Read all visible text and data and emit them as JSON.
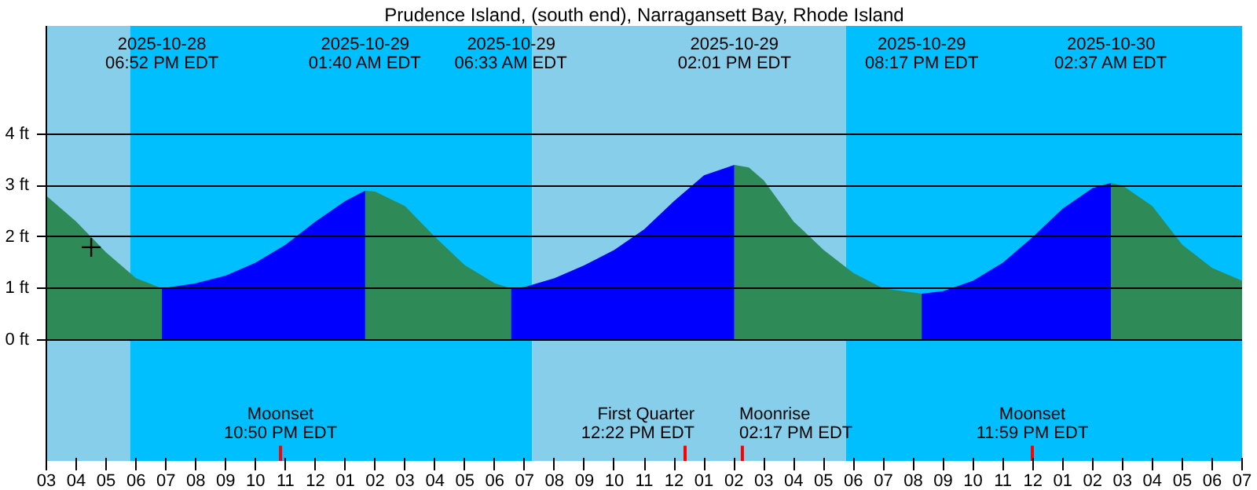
{
  "chart_data": {
    "type": "area",
    "title": "Prudence Island, (south end), Narragansett Bay, Rhode Island",
    "xlim": [
      "2025-10-28T15:00",
      "2025-10-30T07:00"
    ],
    "ylim": [
      -2.35,
      6.1
    ],
    "xticks": [
      {
        "value": "2025-10-28T15:00",
        "label": "03"
      },
      {
        "value": "2025-10-28T16:00",
        "label": "04"
      },
      {
        "value": "2025-10-28T17:00",
        "label": "05"
      },
      {
        "value": "2025-10-28T18:00",
        "label": "06"
      },
      {
        "value": "2025-10-28T19:00",
        "label": "07"
      },
      {
        "value": "2025-10-28T20:00",
        "label": "08"
      },
      {
        "value": "2025-10-28T21:00",
        "label": "09"
      },
      {
        "value": "2025-10-28T22:00",
        "label": "10"
      },
      {
        "value": "2025-10-28T23:00",
        "label": "11"
      },
      {
        "value": "2025-10-29T00:00",
        "label": "12"
      },
      {
        "value": "2025-10-29T01:00",
        "label": "01"
      },
      {
        "value": "2025-10-29T02:00",
        "label": "02"
      },
      {
        "value": "2025-10-29T03:00",
        "label": "03"
      },
      {
        "value": "2025-10-29T04:00",
        "label": "04"
      },
      {
        "value": "2025-10-29T05:00",
        "label": "05"
      },
      {
        "value": "2025-10-29T06:00",
        "label": "06"
      },
      {
        "value": "2025-10-29T07:00",
        "label": "07"
      },
      {
        "value": "2025-10-29T08:00",
        "label": "08"
      },
      {
        "value": "2025-10-29T09:00",
        "label": "09"
      },
      {
        "value": "2025-10-29T10:00",
        "label": "10"
      },
      {
        "value": "2025-10-29T11:00",
        "label": "11"
      },
      {
        "value": "2025-10-29T12:00",
        "label": "12"
      },
      {
        "value": "2025-10-29T13:00",
        "label": "01"
      },
      {
        "value": "2025-10-29T14:00",
        "label": "02"
      },
      {
        "value": "2025-10-29T15:00",
        "label": "03"
      },
      {
        "value": "2025-10-29T16:00",
        "label": "04"
      },
      {
        "value": "2025-10-29T17:00",
        "label": "05"
      },
      {
        "value": "2025-10-29T18:00",
        "label": "06"
      },
      {
        "value": "2025-10-29T19:00",
        "label": "07"
      },
      {
        "value": "2025-10-29T20:00",
        "label": "08"
      },
      {
        "value": "2025-10-29T21:00",
        "label": "09"
      },
      {
        "value": "2025-10-29T22:00",
        "label": "10"
      },
      {
        "value": "2025-10-29T23:00",
        "label": "11"
      },
      {
        "value": "2025-10-30T00:00",
        "label": "12"
      },
      {
        "value": "2025-10-30T01:00",
        "label": "01"
      },
      {
        "value": "2025-10-30T02:00",
        "label": "02"
      },
      {
        "value": "2025-10-30T03:00",
        "label": "03"
      },
      {
        "value": "2025-10-30T04:00",
        "label": "04"
      },
      {
        "value": "2025-10-30T05:00",
        "label": "05"
      },
      {
        "value": "2025-10-30T06:00",
        "label": "06"
      },
      {
        "value": "2025-10-30T07:00",
        "label": "07"
      }
    ],
    "yticks": [
      {
        "value": 0,
        "label": "0 ft"
      },
      {
        "value": 1,
        "label": "1 ft"
      },
      {
        "value": 2,
        "label": "2 ft"
      },
      {
        "value": 3,
        "label": "3 ft"
      },
      {
        "value": 4,
        "label": "4 ft"
      }
    ],
    "grid": "y",
    "bands": [
      {
        "axis": "x",
        "from": "2025-10-28T15:00",
        "to": "2025-10-28T17:48",
        "color": "#87ceeb"
      },
      {
        "axis": "x",
        "from": "2025-10-28T17:48",
        "to": "2025-10-29T07:15",
        "color": "#00bfff"
      },
      {
        "axis": "x",
        "from": "2025-10-29T07:15",
        "to": "2025-10-29T17:45",
        "color": "#87ceeb"
      },
      {
        "axis": "x",
        "from": "2025-10-29T17:45",
        "to": "2025-10-30T07:00",
        "color": "#00bfff"
      }
    ],
    "series": [
      {
        "color": "#2e8b57",
        "x": [
          "2025-10-28T15:00",
          "2025-10-28T16:00",
          "2025-10-28T17:00",
          "2025-10-28T18:00",
          "2025-10-28T18:52"
        ],
        "values": [
          2.8,
          2.3,
          1.7,
          1.2,
          1.0
        ]
      },
      {
        "color": "#0000ff",
        "x": [
          "2025-10-28T18:52",
          "2025-10-28T20:00",
          "2025-10-28T21:00",
          "2025-10-28T22:00",
          "2025-10-28T23:00",
          "2025-10-29T00:00",
          "2025-10-29T01:00",
          "2025-10-29T01:40"
        ],
        "values": [
          1.0,
          1.1,
          1.25,
          1.5,
          1.85,
          2.3,
          2.7,
          2.9
        ]
      },
      {
        "color": "#2e8b57",
        "x": [
          "2025-10-29T01:40",
          "2025-10-29T02:00",
          "2025-10-29T03:00",
          "2025-10-29T04:00",
          "2025-10-29T05:00",
          "2025-10-29T06:00",
          "2025-10-29T06:33"
        ],
        "values": [
          2.9,
          2.88,
          2.6,
          2.0,
          1.45,
          1.1,
          1.0
        ]
      },
      {
        "color": "#0000ff",
        "x": [
          "2025-10-29T06:33",
          "2025-10-29T07:00",
          "2025-10-29T08:00",
          "2025-10-29T09:00",
          "2025-10-29T10:00",
          "2025-10-29T11:00",
          "2025-10-29T12:00",
          "2025-10-29T13:00",
          "2025-10-29T14:01"
        ],
        "values": [
          1.0,
          1.03,
          1.2,
          1.45,
          1.75,
          2.15,
          2.7,
          3.2,
          3.4
        ]
      },
      {
        "color": "#2e8b57",
        "x": [
          "2025-10-29T14:01",
          "2025-10-29T14:30",
          "2025-10-29T15:00",
          "2025-10-29T16:00",
          "2025-10-29T17:00",
          "2025-10-29T18:00",
          "2025-10-29T19:00",
          "2025-10-29T20:17"
        ],
        "values": [
          3.4,
          3.35,
          3.1,
          2.3,
          1.75,
          1.3,
          1.0,
          0.9
        ]
      },
      {
        "color": "#0000ff",
        "x": [
          "2025-10-29T20:17",
          "2025-10-29T21:00",
          "2025-10-29T22:00",
          "2025-10-29T23:00",
          "2025-10-30T00:00",
          "2025-10-30T01:00",
          "2025-10-30T02:00",
          "2025-10-30T02:37"
        ],
        "values": [
          0.9,
          0.95,
          1.15,
          1.5,
          2.0,
          2.55,
          2.95,
          3.05
        ]
      },
      {
        "color": "#2e8b57",
        "x": [
          "2025-10-30T02:37",
          "2025-10-30T03:00",
          "2025-10-30T04:00",
          "2025-10-30T05:00",
          "2025-10-30T06:00",
          "2025-10-30T07:00"
        ],
        "values": [
          3.05,
          3.0,
          2.6,
          1.85,
          1.4,
          1.15
        ]
      },
      {
        "type": "scatter",
        "marker": "cross",
        "color": "#000000",
        "x": [
          "2025-10-28T16:30"
        ],
        "values": [
          1.8
        ]
      }
    ],
    "annotations": [
      "2025-10-28\n06:52 PM EDT",
      "2025-10-29\n01:40 AM EDT",
      "2025-10-29\n06:33 AM EDT",
      "2025-10-29\n02:01 PM EDT",
      "2025-10-29\n08:17 PM EDT",
      "2025-10-30\n02:37 AM EDT"
    ],
    "ref_lines": [
      {
        "axis": "x",
        "value": "2025-10-28T22:50",
        "label": "Moonset\n10:50 PM EDT",
        "color": "#ff0000"
      },
      {
        "axis": "x",
        "value": "2025-10-29T12:22",
        "label": "First Quarter\n12:22 PM EDT",
        "color": "#ff0000"
      },
      {
        "axis": "x",
        "value": "2025-10-29T14:17",
        "label": "Moonrise\n02:17 PM EDT",
        "color": "#ff0000"
      },
      {
        "axis": "x",
        "value": "2025-10-29T23:59",
        "label": "Moonset\n11:59 PM EDT",
        "color": "#ff0000"
      }
    ]
  }
}
